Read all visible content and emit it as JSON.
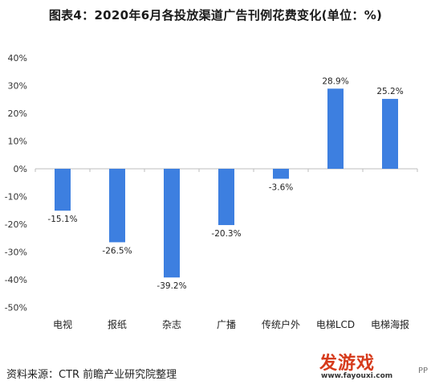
{
  "header": {
    "title": "图表4：2020年6月各投放渠道广告刊例花费变化(单位：%)"
  },
  "footer": {
    "source": "资料来源：CTR 前瞻产业研究院整理"
  },
  "badge": {
    "text": "发游戏",
    "url": "www.fayouxi.com",
    "color": "#d63b1c"
  },
  "corner_text": "PP",
  "chart_data": {
    "type": "bar",
    "title": "图表4：2020年6月各投放渠道广告刊例花费变化(单位：%)",
    "categories": [
      "电视",
      "报纸",
      "杂志",
      "广播",
      "传统户外",
      "电梯LCD",
      "电梯海报"
    ],
    "values": [
      -15.1,
      -26.5,
      -39.2,
      -20.3,
      -3.6,
      28.9,
      25.2
    ],
    "data_labels": [
      "-15.1%",
      "-26.5%",
      "-39.2%",
      "-20.3%",
      "-3.6%",
      "28.9%",
      "25.2%"
    ],
    "y_ticks": [
      40,
      30,
      20,
      10,
      0,
      -10,
      -20,
      -30,
      -40,
      -50
    ],
    "y_tick_labels": [
      "40%",
      "30%",
      "20%",
      "10%",
      "0%",
      "-10%",
      "-20%",
      "-30%",
      "-40%",
      "-50%"
    ],
    "ylim": [
      -50,
      40
    ],
    "xlabel": "",
    "ylabel": "",
    "grid": false,
    "bar_color": "#3d7fe0"
  }
}
